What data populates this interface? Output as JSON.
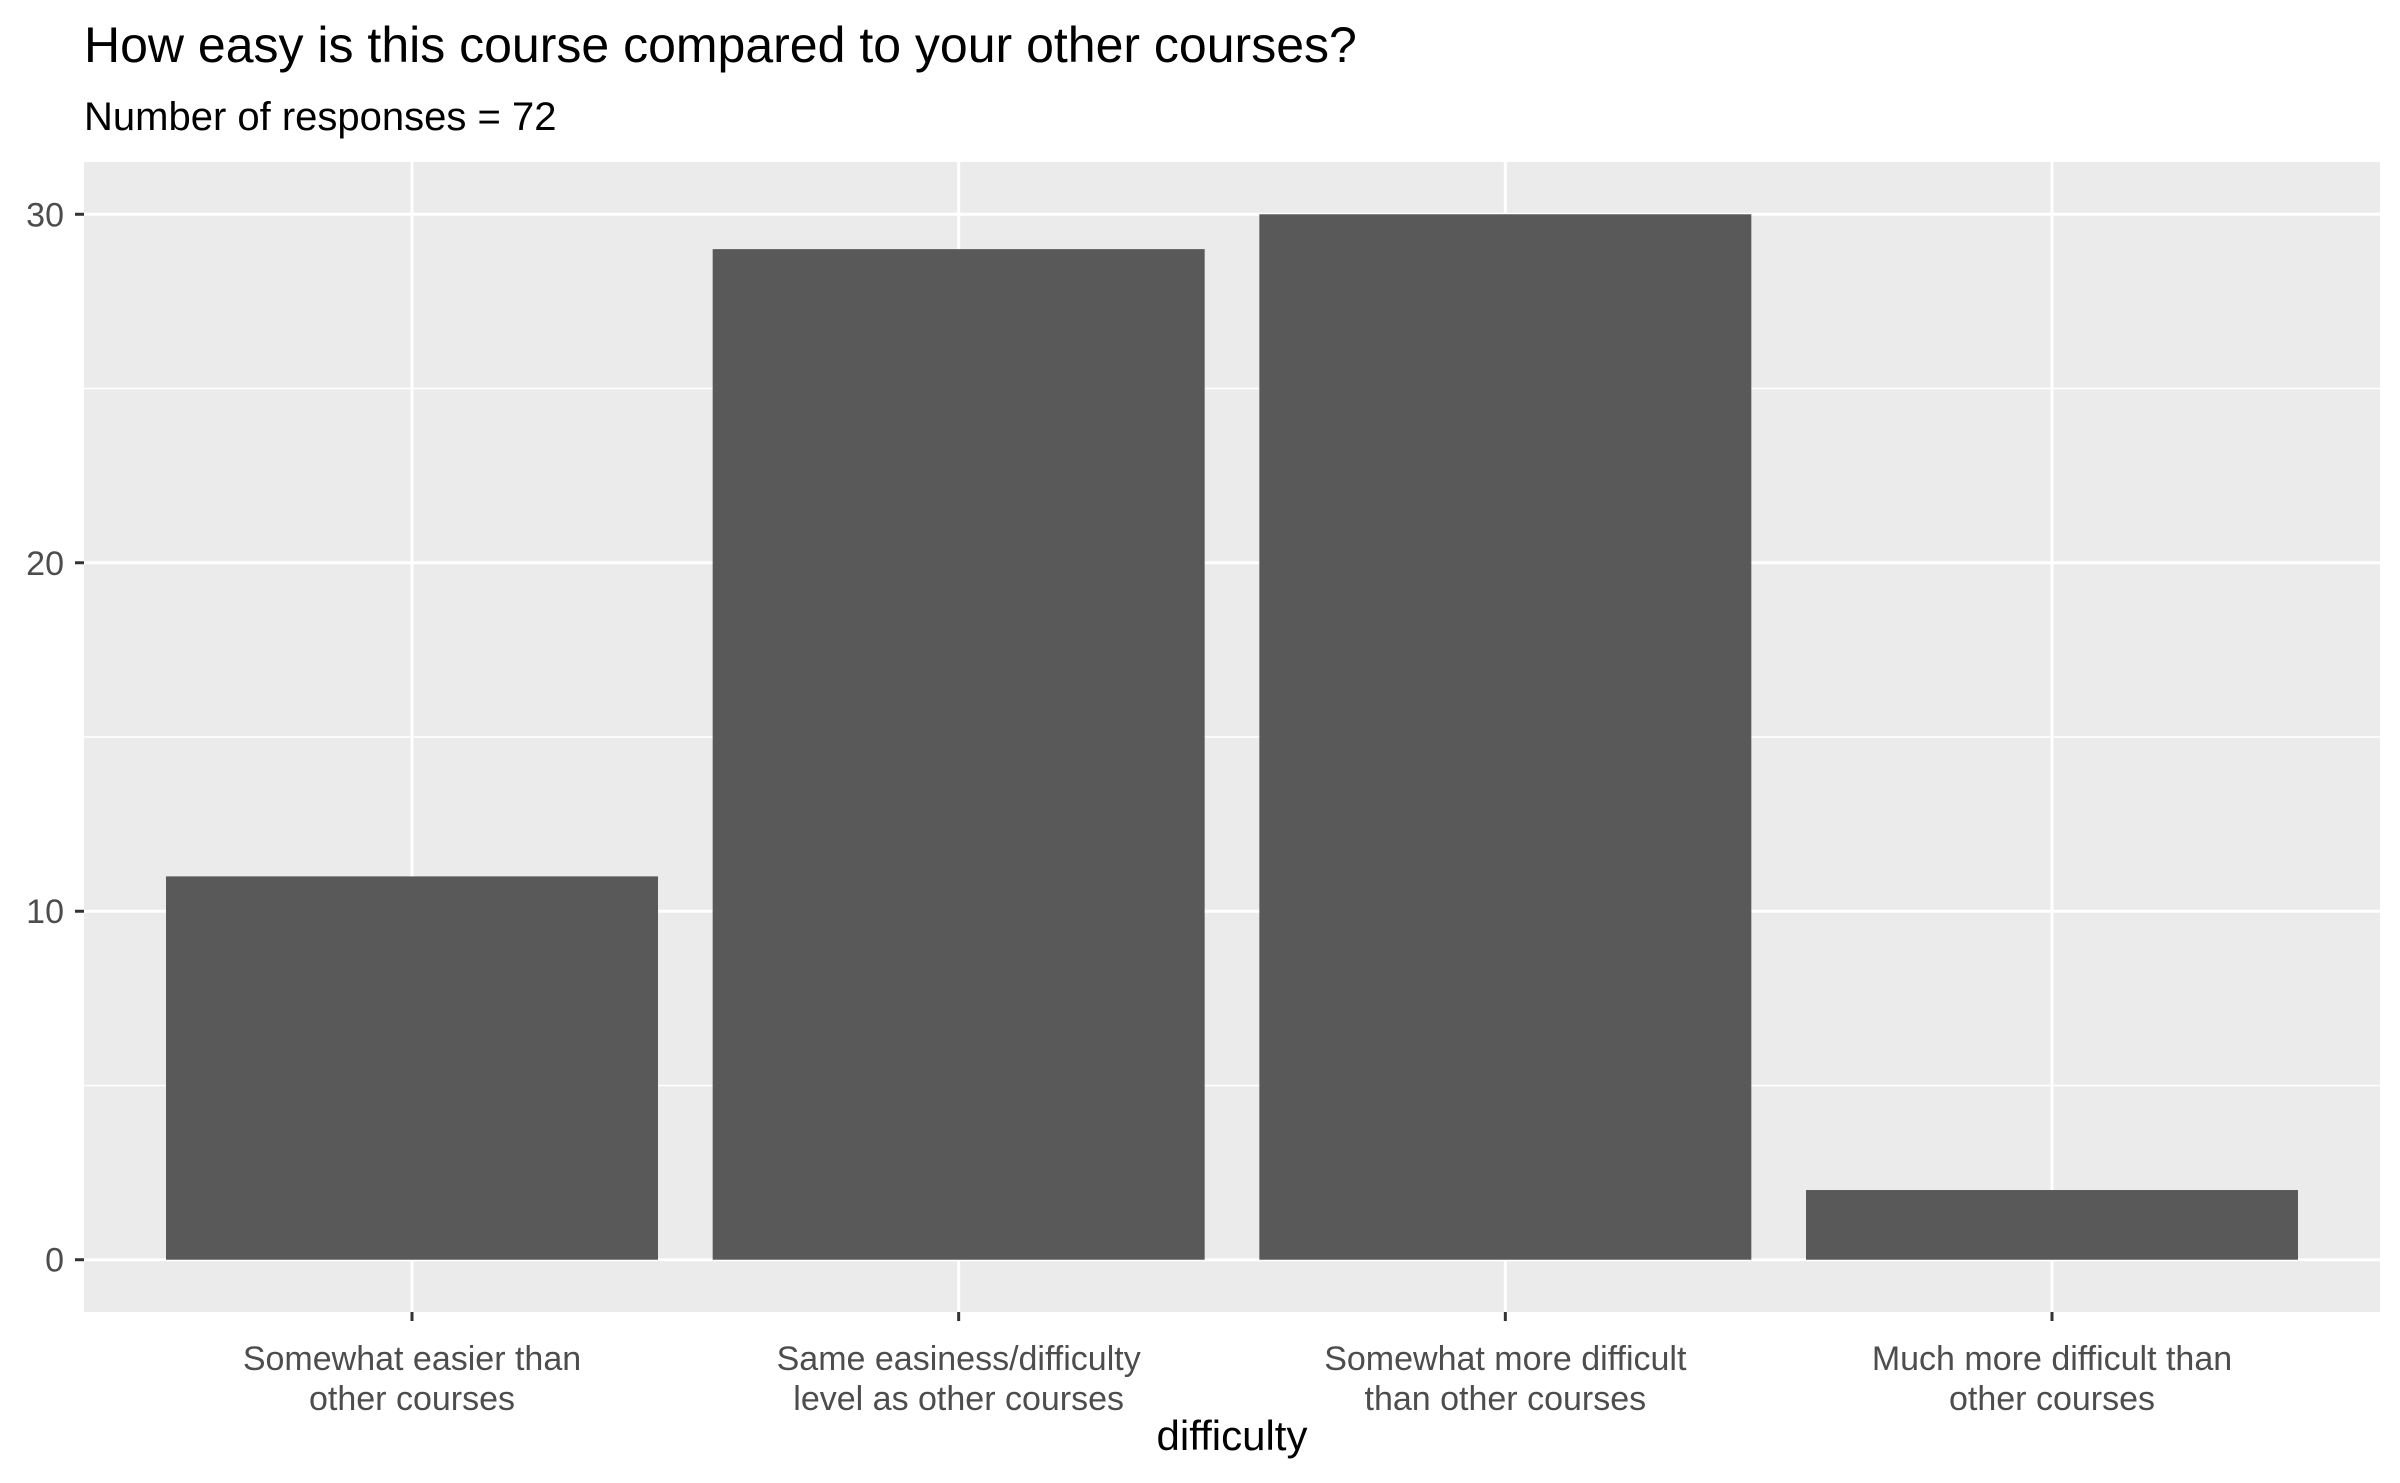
{
  "chart_data": {
    "type": "bar",
    "title": "How easy is this course compared to your other courses?",
    "subtitle": "Number of responses = 72",
    "xlabel": "difficulty",
    "ylabel": "",
    "categories": [
      [
        "Somewhat easier than",
        "other courses"
      ],
      [
        "Same easiness/difficulty",
        "level as other courses"
      ],
      [
        "Somewhat more difficult",
        "than other courses"
      ],
      [
        "Much more difficult than",
        "other courses"
      ]
    ],
    "values": [
      11,
      29,
      30,
      2
    ],
    "ylim": [
      -1.5,
      31.5
    ],
    "y_ticks": [
      0,
      10,
      20,
      30
    ],
    "y_minor_ticks": [
      5,
      15,
      25
    ],
    "grid": true,
    "legend": "none",
    "colors": {
      "bar": "#595959",
      "panel": "#ebebeb",
      "grid": "#ffffff",
      "tick": "#333333",
      "tick_label": "#4d4d4d"
    }
  }
}
